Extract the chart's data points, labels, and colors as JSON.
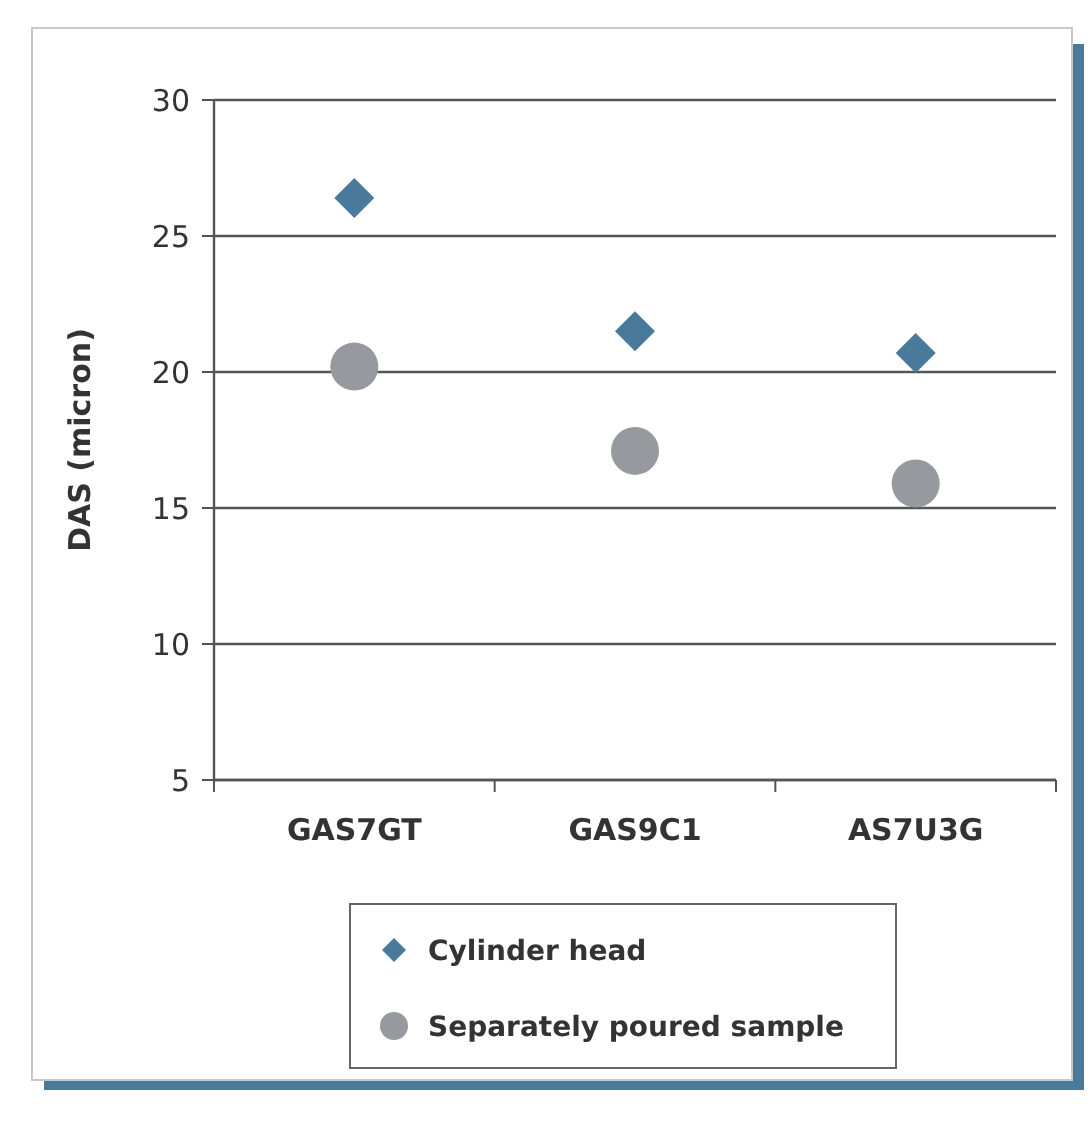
{
  "chart_data": {
    "type": "scatter",
    "ylabel": "DAS (micron)",
    "categories": [
      "GAS7GT",
      "GAS9C1",
      "AS7U3G"
    ],
    "ylim": [
      5,
      30
    ],
    "yticks": [
      5,
      10,
      15,
      20,
      25,
      30
    ],
    "grid": "y",
    "legend": "bottom",
    "series": [
      {
        "name": "Cylinder head",
        "color": "#4a7a9b",
        "marker": "diamond",
        "values": [
          26.4,
          21.5,
          20.7
        ]
      },
      {
        "name": "Separately poured sample",
        "color": "#96999e",
        "marker": "circle",
        "values": [
          20.2,
          17.1,
          15.9
        ]
      }
    ]
  }
}
